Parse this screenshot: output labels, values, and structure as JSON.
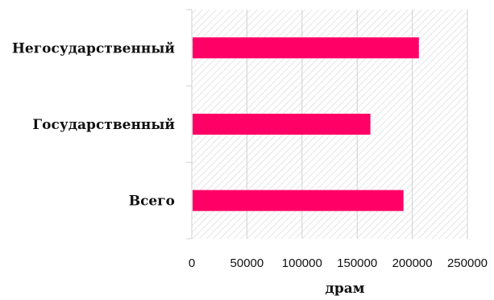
{
  "chart_data": {
    "type": "bar",
    "orientation": "horizontal",
    "categories": [
      "Негосударственный",
      "Государственный",
      "Всего"
    ],
    "values": [
      206000,
      162000,
      192000
    ],
    "xlabel": "драм",
    "ylabel": "",
    "xlim": [
      0,
      250000
    ],
    "xticks": [
      "0",
      "50000",
      "100000",
      "150000",
      "200000",
      "250000"
    ],
    "grid": true,
    "bar_color": "#ff0066",
    "plot_background": "diagonal-hatch"
  }
}
